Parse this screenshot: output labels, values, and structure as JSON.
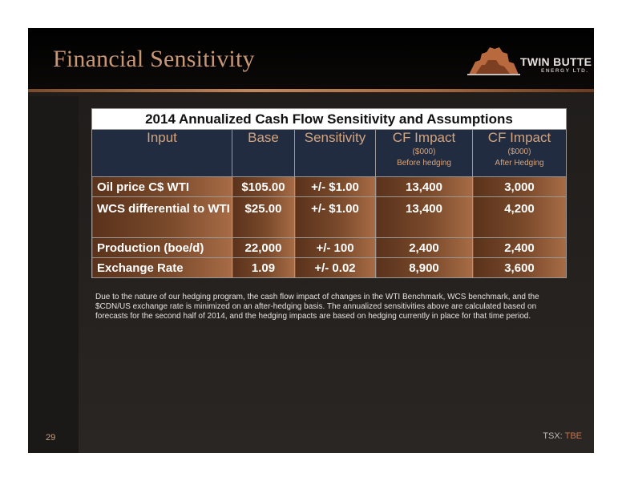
{
  "slide": {
    "title": "Financial Sensitivity",
    "logo": {
      "name": "TWIN BUTTE",
      "sub": "ENERGY LTD."
    },
    "page_number": "29",
    "ticker_prefix": "TSX:",
    "ticker_symbol": "TBE"
  },
  "table": {
    "caption": "2014 Annualized Cash Flow Sensitivity and Assumptions",
    "headers": [
      {
        "label": "Input",
        "line1": "",
        "line2": ""
      },
      {
        "label": "Base",
        "line1": "",
        "line2": ""
      },
      {
        "label": "Sensitivity",
        "line1": "",
        "line2": ""
      },
      {
        "label": "CF Impact",
        "line1": "($000)",
        "line2": "Before hedging"
      },
      {
        "label": "CF Impact",
        "line1": "($000)",
        "line2": "After Hedging"
      }
    ],
    "rows": [
      [
        "Oil price C$ WTI",
        "$105.00",
        "+/- $1.00",
        "13,400",
        "3,000"
      ],
      [
        "WCS differential to WTI",
        "$25.00",
        "+/- $1.00",
        "13,400",
        "4,200"
      ],
      [
        "Production (boe/d)",
        "22,000",
        "+/- 100",
        "2,400",
        "2,400"
      ],
      [
        "Exchange Rate",
        "1.09",
        "+/- 0.02",
        "8,900",
        "3,600"
      ]
    ]
  },
  "note": "Due to the nature of our hedging program, the cash flow impact of changes in the WTI Benchmark, WCS benchmark, and the $CDN/US exchange rate is minimized on an after-hedging basis. The annualized sensitivities above are calculated based on forecasts for the second half of 2014, and the hedging impacts are based on hedging currently in place for that time period."
}
